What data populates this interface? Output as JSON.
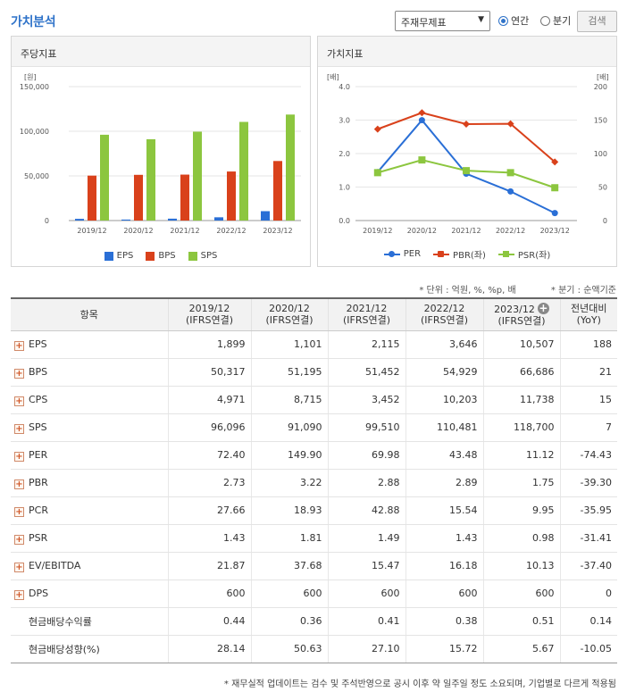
{
  "header": {
    "title": "가치분석",
    "select_value": "주재무제표",
    "radio_annual": "연간",
    "radio_quarter": "분기",
    "search_label": "검색"
  },
  "left_panel": {
    "title": "주당지표"
  },
  "right_panel": {
    "title": "가치지표"
  },
  "chart_data": [
    {
      "type": "bar",
      "categories": [
        "2019/12",
        "2020/12",
        "2021/12",
        "2022/12",
        "2023/12"
      ],
      "series": [
        {
          "name": "EPS",
          "values": [
            1899,
            1101,
            2115,
            3646,
            10507
          ],
          "color": "#2a6fd6"
        },
        {
          "name": "BPS",
          "values": [
            50317,
            51195,
            51452,
            54929,
            66686
          ],
          "color": "#d9411b"
        },
        {
          "name": "SPS",
          "values": [
            96096,
            91090,
            99510,
            110481,
            118700
          ],
          "color": "#8cc63f"
        }
      ],
      "ylabel": "[원]",
      "ylim": [
        0,
        150000
      ],
      "yticks": [
        "150,000",
        "100,000",
        "50,000",
        "0"
      ],
      "legend": "bottom"
    },
    {
      "type": "line",
      "categories": [
        "2019/12",
        "2020/12",
        "2021/12",
        "2022/12",
        "2023/12"
      ],
      "series": [
        {
          "name": "PER",
          "axis": "right",
          "values": [
            72.4,
            149.9,
            69.98,
            43.48,
            11.12
          ],
          "color": "#2a6fd6",
          "marker": "circle"
        },
        {
          "name": "PBR(좌)",
          "axis": "left",
          "values": [
            2.73,
            3.22,
            2.88,
            2.89,
            1.75
          ],
          "color": "#d9411b",
          "marker": "diamond"
        },
        {
          "name": "PSR(좌)",
          "axis": "left",
          "values": [
            1.43,
            1.81,
            1.49,
            1.43,
            0.98
          ],
          "color": "#8cc63f",
          "marker": "square"
        }
      ],
      "ylabel_left": "[배]",
      "ylabel_right": "[배]",
      "ylim_left": [
        0,
        4.0
      ],
      "ylim_right": [
        0,
        200
      ],
      "yticks_left": [
        "4.0",
        "3.0",
        "2.0",
        "1.0",
        "0.0"
      ],
      "yticks_right": [
        "200",
        "150",
        "100",
        "50",
        "0"
      ],
      "legend": "bottom"
    }
  ],
  "notes": {
    "unit": "* 단위 : 억원, %, %p, 배",
    "quarter": "* 분기 : 순액기준"
  },
  "table": {
    "header_item": "항목",
    "columns": [
      {
        "period": "2019/12",
        "basis": "(IFRS연결)"
      },
      {
        "period": "2020/12",
        "basis": "(IFRS연결)"
      },
      {
        "period": "2021/12",
        "basis": "(IFRS연결)"
      },
      {
        "period": "2022/12",
        "basis": "(IFRS연결)"
      },
      {
        "period": "2023/12",
        "basis": "(IFRS연결)"
      }
    ],
    "yoy_header_1": "전년대비",
    "yoy_header_2": "(YoY)",
    "rows": [
      {
        "label": "EPS",
        "expandable": true,
        "values": [
          "1,899",
          "1,101",
          "2,115",
          "3,646",
          "10,507"
        ],
        "yoy": "188"
      },
      {
        "label": "BPS",
        "expandable": true,
        "values": [
          "50,317",
          "51,195",
          "51,452",
          "54,929",
          "66,686"
        ],
        "yoy": "21"
      },
      {
        "label": "CPS",
        "expandable": true,
        "values": [
          "4,971",
          "8,715",
          "3,452",
          "10,203",
          "11,738"
        ],
        "yoy": "15"
      },
      {
        "label": "SPS",
        "expandable": true,
        "values": [
          "96,096",
          "91,090",
          "99,510",
          "110,481",
          "118,700"
        ],
        "yoy": "7"
      },
      {
        "label": "PER",
        "expandable": true,
        "values": [
          "72.40",
          "149.90",
          "69.98",
          "43.48",
          "11.12"
        ],
        "yoy": "-74.43"
      },
      {
        "label": "PBR",
        "expandable": true,
        "values": [
          "2.73",
          "3.22",
          "2.88",
          "2.89",
          "1.75"
        ],
        "yoy": "-39.30"
      },
      {
        "label": "PCR",
        "expandable": true,
        "values": [
          "27.66",
          "18.93",
          "42.88",
          "15.54",
          "9.95"
        ],
        "yoy": "-35.95"
      },
      {
        "label": "PSR",
        "expandable": true,
        "values": [
          "1.43",
          "1.81",
          "1.49",
          "1.43",
          "0.98"
        ],
        "yoy": "-31.41"
      },
      {
        "label": "EV/EBITDA",
        "expandable": true,
        "values": [
          "21.87",
          "37.68",
          "15.47",
          "16.18",
          "10.13"
        ],
        "yoy": "-37.40"
      },
      {
        "label": "DPS",
        "expandable": true,
        "values": [
          "600",
          "600",
          "600",
          "600",
          "600"
        ],
        "yoy": "0"
      },
      {
        "label": "현금배당수익률",
        "expandable": false,
        "values": [
          "0.44",
          "0.36",
          "0.41",
          "0.38",
          "0.51"
        ],
        "yoy": "0.14"
      },
      {
        "label": "현금배당성향(%)",
        "expandable": false,
        "values": [
          "28.14",
          "50.63",
          "27.10",
          "15.72",
          "5.67"
        ],
        "yoy": "-10.05"
      }
    ]
  },
  "footer": "* 재무실적 업데이트는 검수 및 주석반영으로 공시 이후 약 일주일 정도 소요되며, 기업별로 다르게 적용됨"
}
